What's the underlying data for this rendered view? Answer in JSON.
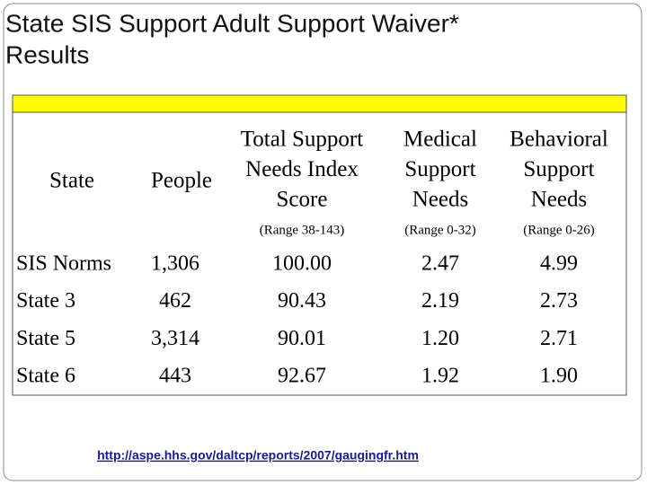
{
  "header": {
    "title": [
      "State SIS Support Adult Support Waiver*",
      "Results"
    ]
  },
  "table": {
    "columns": [
      {
        "label": [
          "State"
        ]
      },
      {
        "label": [
          "People"
        ]
      },
      {
        "label": [
          "Total Support",
          "Needs Index",
          "Score"
        ],
        "range": "(Range 38-143)"
      },
      {
        "label": [
          "Medical",
          "Support",
          "Needs"
        ],
        "range": "(Range 0-32)"
      },
      {
        "label": [
          "Behavioral",
          "Support",
          "Needs"
        ],
        "range": "(Range 0-26)"
      }
    ],
    "rows": [
      [
        "SIS Norms",
        "1,306",
        "100.00",
        "2.47",
        "4.99"
      ],
      [
        "State 3",
        "462",
        "90.43",
        "2.19",
        "2.73"
      ],
      [
        "State 5",
        "3,314",
        "90.01",
        "1.20",
        "2.71"
      ],
      [
        "State 6",
        "443",
        "92.67",
        "1.92",
        "1.90"
      ]
    ]
  },
  "footer": {
    "link": "http://aspe.hhs.gov/daltcp/reports/2007/gaugingfr.htm"
  }
}
